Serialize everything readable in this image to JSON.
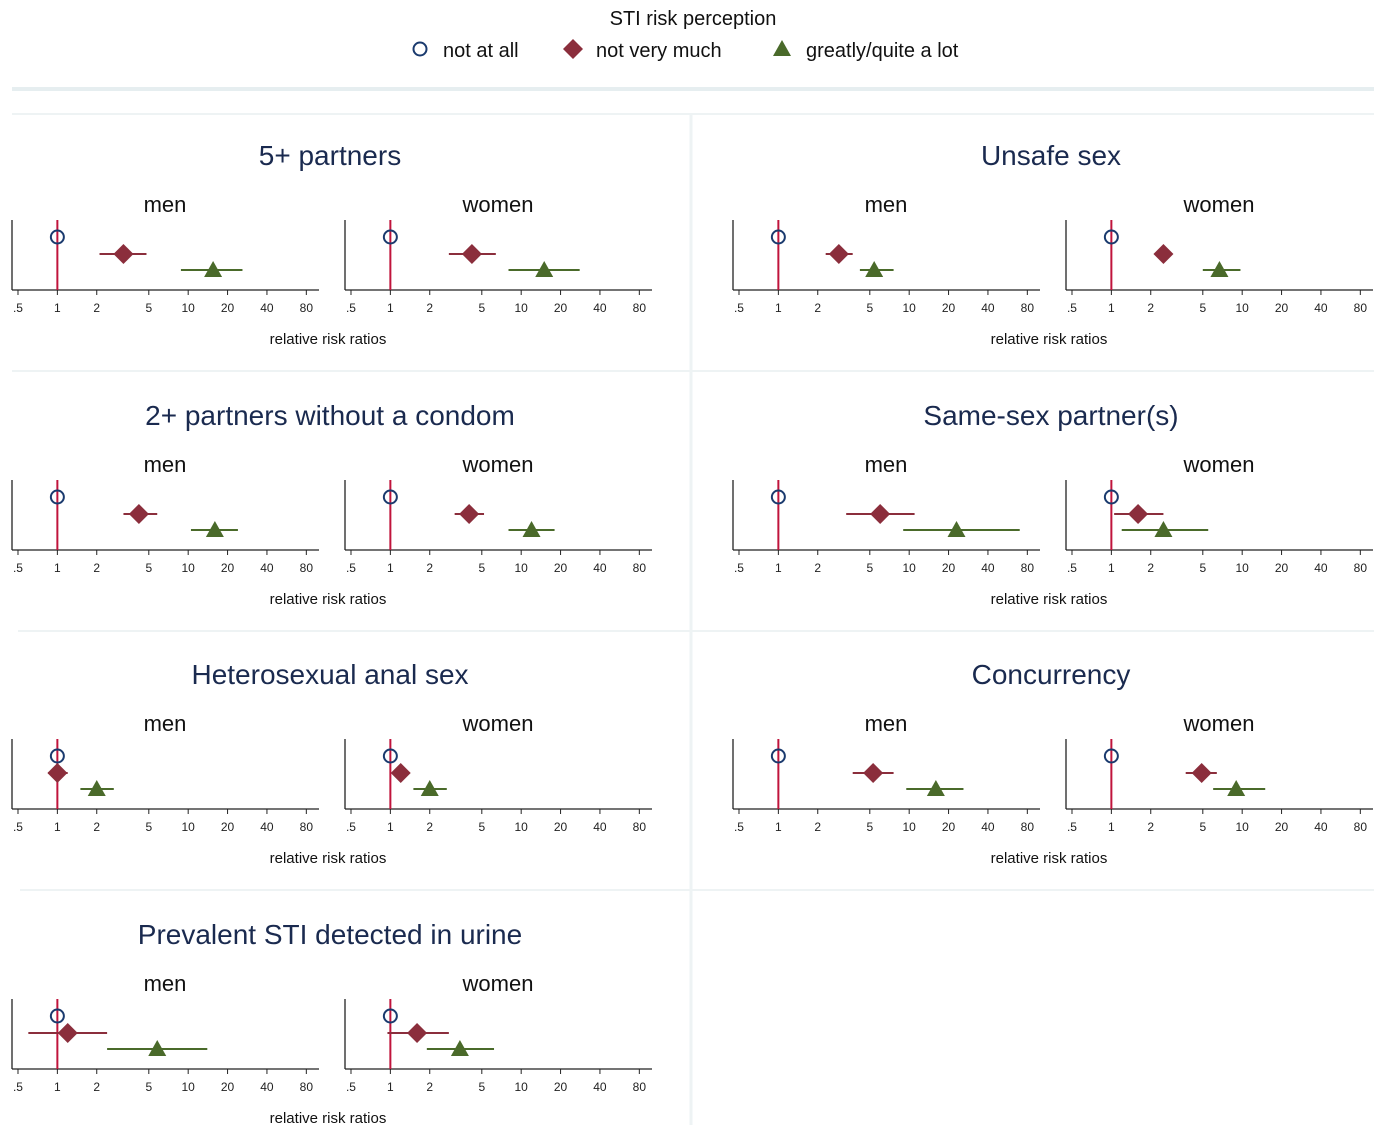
{
  "legend": {
    "title": "STI risk perception",
    "items": [
      {
        "label": "not at all",
        "marker": "circle-hollow",
        "color": "#1a3a6e"
      },
      {
        "label": "not very much",
        "marker": "diamond",
        "color": "#8b2e3c"
      },
      {
        "label": "greatly/quite a lot",
        "marker": "triangle",
        "color": "#4a6a2a"
      }
    ]
  },
  "colors": {
    "reference_line": "#c0143c",
    "divider": "#e6eef0",
    "axis": "#222222"
  },
  "chart_data": {
    "type": "scatter",
    "xscale": "log",
    "xlabel": "relative risk ratios",
    "xticks": [
      ".5",
      "1",
      "2",
      "5",
      "10",
      "20",
      "40",
      "80"
    ],
    "xtick_values": [
      0.5,
      1,
      2,
      5,
      10,
      20,
      40,
      80
    ],
    "xlim": [
      0.45,
      100
    ],
    "reference_value": 1,
    "series_names": [
      "not at all",
      "not very much",
      "greatly/quite a lot"
    ],
    "panels": [
      {
        "title": "5+ partners",
        "show_xlabel": true,
        "subplots": [
          {
            "label": "men",
            "estimates": [
              {
                "series": "not at all",
                "rrr": 1
              },
              {
                "series": "not very much",
                "rrr": 3.2,
                "ci": [
                  2.1,
                  4.8
                ]
              },
              {
                "series": "greatly/quite a lot",
                "rrr": 15.5,
                "ci": [
                  8.8,
                  26
                ]
              }
            ]
          },
          {
            "label": "women",
            "estimates": [
              {
                "series": "not at all",
                "rrr": 1
              },
              {
                "series": "not very much",
                "rrr": 4.2,
                "ci": [
                  2.8,
                  6.4
                ]
              },
              {
                "series": "greatly/quite a lot",
                "rrr": 15,
                "ci": [
                  8,
                  28
                ]
              }
            ]
          }
        ]
      },
      {
        "title": "Unsafe sex",
        "show_xlabel": true,
        "subplots": [
          {
            "label": "men",
            "estimates": [
              {
                "series": "not at all",
                "rrr": 1
              },
              {
                "series": "not very much",
                "rrr": 2.9,
                "ci": [
                  2.3,
                  3.7
                ]
              },
              {
                "series": "greatly/quite a lot",
                "rrr": 5.4,
                "ci": [
                  4.2,
                  7.6
                ]
              }
            ]
          },
          {
            "label": "women",
            "estimates": [
              {
                "series": "not at all",
                "rrr": 1
              },
              {
                "series": "not very much",
                "rrr": 2.5,
                "ci": [
                  2.2,
                  2.9
                ]
              },
              {
                "series": "greatly/quite a lot",
                "rrr": 6.7,
                "ci": [
                  5,
                  9.7
                ]
              }
            ]
          }
        ]
      },
      {
        "title": "2+ partners without a condom",
        "show_xlabel": true,
        "subplots": [
          {
            "label": "men",
            "estimates": [
              {
                "series": "not at all",
                "rrr": 1
              },
              {
                "series": "not very much",
                "rrr": 4.2,
                "ci": [
                  3.2,
                  5.8
                ]
              },
              {
                "series": "greatly/quite a lot",
                "rrr": 16,
                "ci": [
                  10.5,
                  24
                ]
              }
            ]
          },
          {
            "label": "women",
            "estimates": [
              {
                "series": "not at all",
                "rrr": 1
              },
              {
                "series": "not very much",
                "rrr": 4,
                "ci": [
                  3.1,
                  5.2
                ]
              },
              {
                "series": "greatly/quite a lot",
                "rrr": 12,
                "ci": [
                  8,
                  18
                ]
              }
            ]
          }
        ]
      },
      {
        "title": "Same-sex partner(s)",
        "show_xlabel": true,
        "subplots": [
          {
            "label": "men",
            "estimates": [
              {
                "series": "not at all",
                "rrr": 1
              },
              {
                "series": "not very much",
                "rrr": 6,
                "ci": [
                  3.3,
                  11
                ]
              },
              {
                "series": "greatly/quite a lot",
                "rrr": 23,
                "ci": [
                  9,
                  70
                ]
              }
            ]
          },
          {
            "label": "women",
            "estimates": [
              {
                "series": "not at all",
                "rrr": 1
              },
              {
                "series": "not very much",
                "rrr": 1.6,
                "ci": [
                  1.05,
                  2.5
                ]
              },
              {
                "series": "greatly/quite a lot",
                "rrr": 2.5,
                "ci": [
                  1.2,
                  5.5
                ]
              }
            ]
          }
        ]
      },
      {
        "title": "Heterosexual anal sex",
        "show_xlabel": true,
        "subplots": [
          {
            "label": "men",
            "estimates": [
              {
                "series": "not at all",
                "rrr": 1
              },
              {
                "series": "not very much",
                "rrr": 1,
                "ci": [
                  0.85,
                  1.2
                ]
              },
              {
                "series": "greatly/quite a lot",
                "rrr": 2,
                "ci": [
                  1.5,
                  2.7
                ]
              }
            ]
          },
          {
            "label": "women",
            "estimates": [
              {
                "series": "not at all",
                "rrr": 1
              },
              {
                "series": "not very much",
                "rrr": 1.2,
                "ci": [
                  1.05,
                  1.35
                ]
              },
              {
                "series": "greatly/quite a lot",
                "rrr": 2,
                "ci": [
                  1.5,
                  2.7
                ]
              }
            ]
          }
        ]
      },
      {
        "title": "Concurrency",
        "show_xlabel": true,
        "subplots": [
          {
            "label": "men",
            "estimates": [
              {
                "series": "not at all",
                "rrr": 1
              },
              {
                "series": "not very much",
                "rrr": 5.3,
                "ci": [
                  3.7,
                  7.6
                ]
              },
              {
                "series": "greatly/quite a lot",
                "rrr": 16,
                "ci": [
                  9.5,
                  26
                ]
              }
            ]
          },
          {
            "label": "women",
            "estimates": [
              {
                "series": "not at all",
                "rrr": 1
              },
              {
                "series": "not very much",
                "rrr": 4.9,
                "ci": [
                  3.7,
                  6.4
                ]
              },
              {
                "series": "greatly/quite a lot",
                "rrr": 9,
                "ci": [
                  6,
                  15
                ]
              }
            ]
          }
        ]
      },
      {
        "title": "Prevalent STI detected in urine",
        "show_xlabel": true,
        "subplots": [
          {
            "label": "men",
            "estimates": [
              {
                "series": "not at all",
                "rrr": 1
              },
              {
                "series": "not very much",
                "rrr": 1.2,
                "ci": [
                  0.6,
                  2.4
                ]
              },
              {
                "series": "greatly/quite a lot",
                "rrr": 5.8,
                "ci": [
                  2.4,
                  14
                ]
              }
            ]
          },
          {
            "label": "women",
            "estimates": [
              {
                "series": "not at all",
                "rrr": 1
              },
              {
                "series": "not very much",
                "rrr": 1.6,
                "ci": [
                  0.95,
                  2.8
                ]
              },
              {
                "series": "greatly/quite a lot",
                "rrr": 3.4,
                "ci": [
                  1.9,
                  6.2
                ]
              }
            ]
          }
        ]
      }
    ]
  }
}
